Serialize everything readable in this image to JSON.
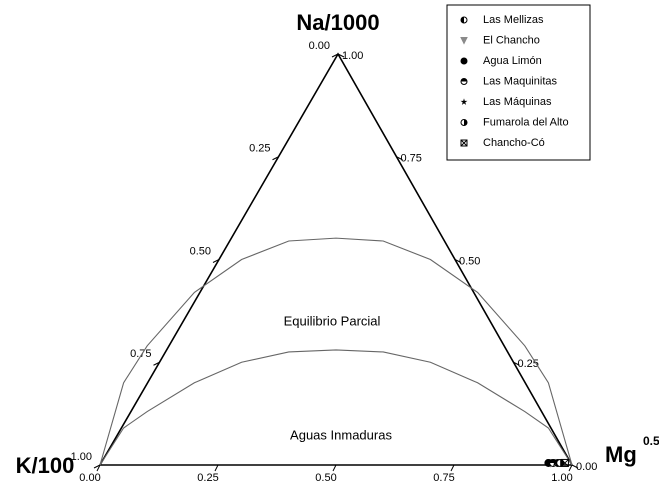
{
  "chart_data": {
    "type": "ternary",
    "axis_labels": {
      "top": "Na/1000",
      "left": "K/100",
      "right": "Mg",
      "right_exponent": "0.5"
    },
    "left_ticks": [
      {
        "value": 0,
        "label": "0.00"
      },
      {
        "value": 0.25,
        "label": "0.25"
      },
      {
        "value": 0.5,
        "label": "0.50"
      },
      {
        "value": 0.75,
        "label": "0.75"
      },
      {
        "value": 1,
        "label": "1.00"
      }
    ],
    "right_ticks": [
      {
        "value": 1,
        "label": "1.00"
      },
      {
        "value": 0.75,
        "label": "0.75"
      },
      {
        "value": 0.5,
        "label": "0.50"
      },
      {
        "value": 0.25,
        "label": "0.25"
      },
      {
        "value": 0,
        "label": "0.00"
      }
    ],
    "bottom_ticks": [
      {
        "value": 0,
        "label": "0.00"
      },
      {
        "value": 0.25,
        "label": "0.25"
      },
      {
        "value": 0.5,
        "label": "0.50"
      },
      {
        "value": 0.75,
        "label": "0.75"
      },
      {
        "value": 1,
        "label": "1.00"
      }
    ],
    "annotations": [
      "Equilibrio Parcial",
      "Aguas Inmaduras"
    ],
    "curves": [
      {
        "x": [
          0,
          0.05,
          0.1,
          0.2,
          0.3,
          0.4,
          0.5,
          0.6,
          0.7,
          0.8,
          0.9,
          0.95,
          1
        ],
        "y": [
          0,
          0.2,
          0.29,
          0.42,
          0.5,
          0.545,
          0.552,
          0.545,
          0.5,
          0.42,
          0.29,
          0.2,
          0
        ]
      },
      {
        "x": [
          0,
          0.05,
          0.1,
          0.2,
          0.3,
          0.4,
          0.5,
          0.6,
          0.7,
          0.8,
          0.9,
          0.95,
          1
        ],
        "y": [
          0,
          0.09,
          0.13,
          0.2,
          0.25,
          0.275,
          0.28,
          0.275,
          0.25,
          0.2,
          0.13,
          0.09,
          0
        ]
      }
    ],
    "series": [
      {
        "name": "Las Mellizas",
        "marker": "half-left",
        "color": "#000000",
        "x": [
          0.97
        ],
        "y": [
          0.005
        ]
      },
      {
        "name": "El Chancho",
        "marker": "triangle-down",
        "color": "#8a8a8a",
        "x": [
          0.955
        ],
        "y": [
          0.005
        ]
      },
      {
        "name": "Agua Limón",
        "marker": "circle",
        "color": "#000000",
        "x": [
          0.95
        ],
        "y": [
          0.005
        ]
      },
      {
        "name": "Las Maquinitas",
        "marker": "half-top",
        "color": "#000000",
        "x": [
          0.96
        ],
        "y": [
          0.005
        ]
      },
      {
        "name": "Las Máquinas",
        "marker": "star",
        "color": "#000000",
        "x": [
          0.965
        ],
        "y": [
          0.005
        ]
      },
      {
        "name": "Fumarola del Alto",
        "marker": "half-right",
        "color": "#000000",
        "x": [
          0.975
        ],
        "y": [
          0.005
        ]
      },
      {
        "name": "Chancho-Có",
        "marker": "box-x",
        "color": "#000000",
        "x": [
          0.985
        ],
        "y": [
          0.005
        ]
      }
    ]
  }
}
